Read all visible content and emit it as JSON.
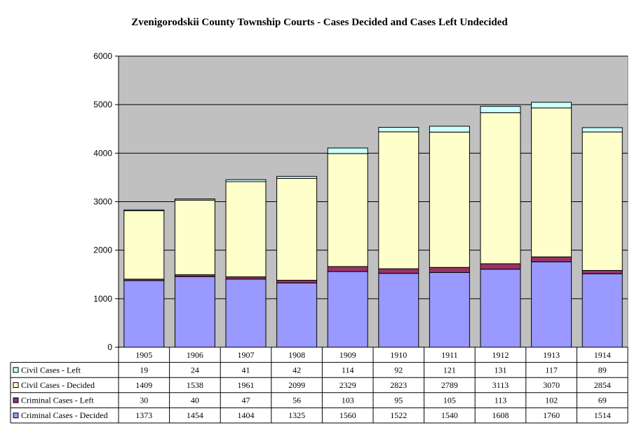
{
  "chart_data": {
    "type": "bar",
    "stacked": true,
    "title": "Zvenigorodskii County Township Courts - Cases Decided and Cases Left Undecided",
    "xlabel": "",
    "ylabel": "",
    "ylim": [
      0,
      6000
    ],
    "yticks": [
      0,
      1000,
      2000,
      3000,
      4000,
      5000,
      6000
    ],
    "grid": true,
    "legend": "data-table-left",
    "categories": [
      "1905",
      "1906",
      "1907",
      "1908",
      "1909",
      "1910",
      "1911",
      "1912",
      "1913",
      "1914"
    ],
    "series": [
      {
        "name": "Criminal Cases - Decided",
        "color": "#9999ff",
        "values": [
          1373,
          1454,
          1404,
          1325,
          1560,
          1522,
          1540,
          1608,
          1760,
          1514
        ]
      },
      {
        "name": "Criminal Cases - Left",
        "color": "#993366",
        "values": [
          30,
          40,
          47,
          56,
          103,
          95,
          105,
          113,
          102,
          69
        ]
      },
      {
        "name": "Civil Cases - Decided",
        "color": "#ffffcc",
        "values": [
          1409,
          1538,
          1961,
          2099,
          2329,
          2823,
          2789,
          3113,
          3070,
          2854
        ]
      },
      {
        "name": "Civil Cases - Left",
        "color": "#ccffff",
        "values": [
          19,
          24,
          41,
          42,
          114,
          92,
          121,
          131,
          117,
          89
        ]
      }
    ],
    "table_row_order": [
      "Civil Cases - Left",
      "Civil Cases - Decided",
      "Criminal Cases - Left",
      "Criminal Cases - Decided"
    ],
    "plot_background": "#c0c0c0"
  }
}
